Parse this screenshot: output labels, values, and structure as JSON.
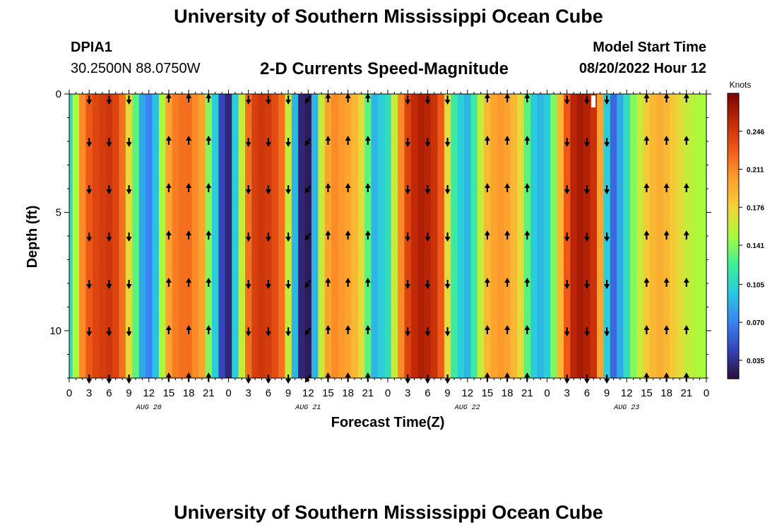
{
  "header": {
    "title": "University of Southern Mississippi Ocean Cube",
    "station": "DPIA1",
    "coords": "30.2500N  88.0750W",
    "subtitle": "2-D Currents Speed-Magnitude",
    "model_label": "Model Start Time",
    "model_time": "08/20/2022 Hour 12"
  },
  "footer": {
    "title": "University of Southern Mississippi Ocean Cube"
  },
  "colors": {
    "c0": "#2a0f3a",
    "c1": "#3543b8",
    "c2": "#3a84f4",
    "c3": "#28c8e0",
    "c4": "#3ef098",
    "c5": "#a8fc3c",
    "c6": "#f4d238",
    "c7": "#fea02e",
    "c8": "#f05a18",
    "c9": "#c22a06",
    "c10": "#7a0403"
  },
  "chart_data": {
    "type": "heatmap",
    "subtitle": "2-D Currents Speed-Magnitude",
    "xlabel": "Forecast Time(Z)",
    "ylabel": "Depth (ft)",
    "x_ticks": [
      "0",
      "3",
      "6",
      "9",
      "12",
      "15",
      "18",
      "21",
      "0",
      "3",
      "6",
      "9",
      "12",
      "15",
      "18",
      "21",
      "0",
      "3",
      "6",
      "9",
      "12",
      "15",
      "18",
      "21",
      "0",
      "3",
      "6",
      "9",
      "12",
      "15",
      "18",
      "21",
      "0"
    ],
    "day_labels": [
      "AUG 20",
      "AUG 21",
      "AUG 22",
      "AUG 23"
    ],
    "y_ticks": [
      "0",
      "5",
      "10"
    ],
    "ylim": [
      0,
      12
    ],
    "hours": [
      0,
      1,
      2,
      3,
      4,
      5,
      6,
      7,
      8,
      9,
      10,
      11,
      12,
      13,
      14,
      15,
      16,
      17,
      18,
      19,
      20,
      21,
      22,
      23,
      24,
      25,
      26,
      27,
      28,
      29,
      30,
      31,
      32,
      33,
      34,
      35,
      36,
      37,
      38,
      39,
      40,
      41,
      42,
      43,
      44,
      45,
      46,
      47,
      48,
      49,
      50,
      51,
      52,
      53,
      54,
      55,
      56,
      57,
      58,
      59,
      60,
      61,
      62,
      63,
      64,
      65,
      66,
      67,
      68,
      69,
      70,
      71,
      72,
      73,
      74,
      75,
      76,
      77,
      78,
      79,
      80,
      81,
      82,
      83,
      84,
      85,
      86,
      87,
      88,
      89,
      90,
      91,
      92,
      93,
      94,
      95,
      96
    ],
    "speed_knots": [
      0.11,
      0.15,
      0.21,
      0.23,
      0.24,
      0.245,
      0.248,
      0.24,
      0.22,
      0.17,
      0.13,
      0.085,
      0.07,
      0.095,
      0.15,
      0.2,
      0.215,
      0.22,
      0.22,
      0.21,
      0.2,
      0.14,
      0.1,
      0.045,
      0.03,
      0.1,
      0.16,
      0.22,
      0.243,
      0.248,
      0.245,
      0.235,
      0.22,
      0.16,
      0.09,
      0.03,
      0.025,
      0.09,
      0.16,
      0.2,
      0.21,
      0.205,
      0.2,
      0.19,
      0.17,
      0.13,
      0.09,
      0.1,
      0.11,
      0.16,
      0.21,
      0.24,
      0.255,
      0.262,
      0.258,
      0.25,
      0.23,
      0.17,
      0.12,
      0.1,
      0.09,
      0.12,
      0.16,
      0.19,
      0.2,
      0.205,
      0.2,
      0.19,
      0.17,
      0.13,
      0.1,
      0.09,
      0.1,
      0.14,
      0.19,
      0.23,
      0.258,
      0.265,
      0.26,
      0.25,
      0.2,
      0.1,
      0.06,
      0.085,
      0.11,
      0.14,
      0.16,
      0.18,
      0.19,
      0.195,
      0.19,
      0.18,
      0.17,
      0.16,
      0.155,
      0.15,
      0.15
    ],
    "arrow_hours": [
      0,
      3,
      6,
      9,
      12,
      15,
      18,
      21,
      24,
      27,
      30,
      33,
      36,
      39,
      42,
      45,
      48,
      51,
      54,
      57,
      60,
      63,
      66,
      69,
      72,
      75,
      78,
      81,
      84,
      87,
      90,
      93,
      96
    ],
    "arrow_depths": [
      0,
      2,
      4,
      6,
      8,
      10,
      12
    ],
    "arrow_dirs": [
      "",
      "S",
      "S",
      "S",
      "",
      "N",
      "N",
      "N",
      "",
      "S",
      "S",
      "S",
      "SW",
      "N",
      "N",
      "N",
      "",
      "S",
      "S",
      "S",
      "",
      "N",
      "N",
      "N",
      "",
      "S",
      "S",
      "S",
      "",
      "N",
      "N",
      "N",
      ""
    ],
    "colorbar": {
      "title": "Knots",
      "ticks": [
        "0.246",
        "0.211",
        "0.176",
        "0.141",
        "0.105",
        "0.070",
        "0.035"
      ],
      "range": [
        0.018,
        0.281
      ]
    }
  }
}
